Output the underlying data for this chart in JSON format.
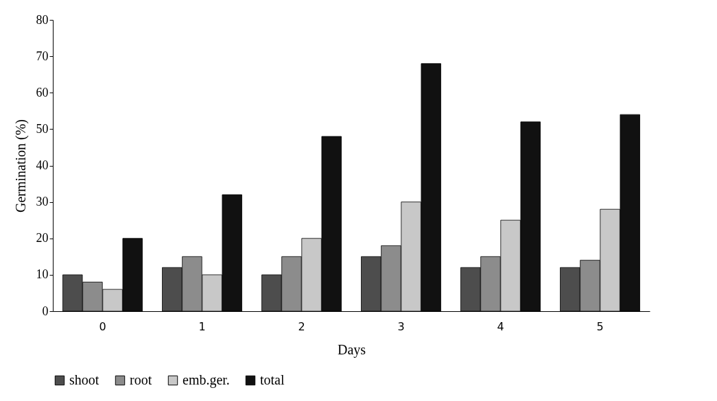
{
  "chart_data": {
    "type": "bar",
    "xlabel": "Days",
    "ylabel": "Germination (%)",
    "categories": [
      "0",
      "1",
      "2",
      "3",
      "4",
      "5"
    ],
    "series": [
      {
        "name": "shoot",
        "color": "#4d4d4d",
        "values": [
          10,
          12,
          10,
          15,
          12,
          12
        ]
      },
      {
        "name": "root",
        "color": "#8c8c8c",
        "values": [
          8,
          15,
          15,
          18,
          15,
          14
        ]
      },
      {
        "name": "emb.ger.",
        "color": "#c8c8c8",
        "values": [
          6,
          10,
          20,
          30,
          25,
          28
        ]
      },
      {
        "name": "total",
        "color": "#111111",
        "values": [
          20,
          32,
          48,
          68,
          52,
          54
        ]
      }
    ],
    "ylim": [
      0,
      80
    ],
    "yticks": [
      0,
      10,
      20,
      30,
      40,
      50,
      60,
      70,
      80
    ],
    "grid": false,
    "legend": "bottom"
  }
}
